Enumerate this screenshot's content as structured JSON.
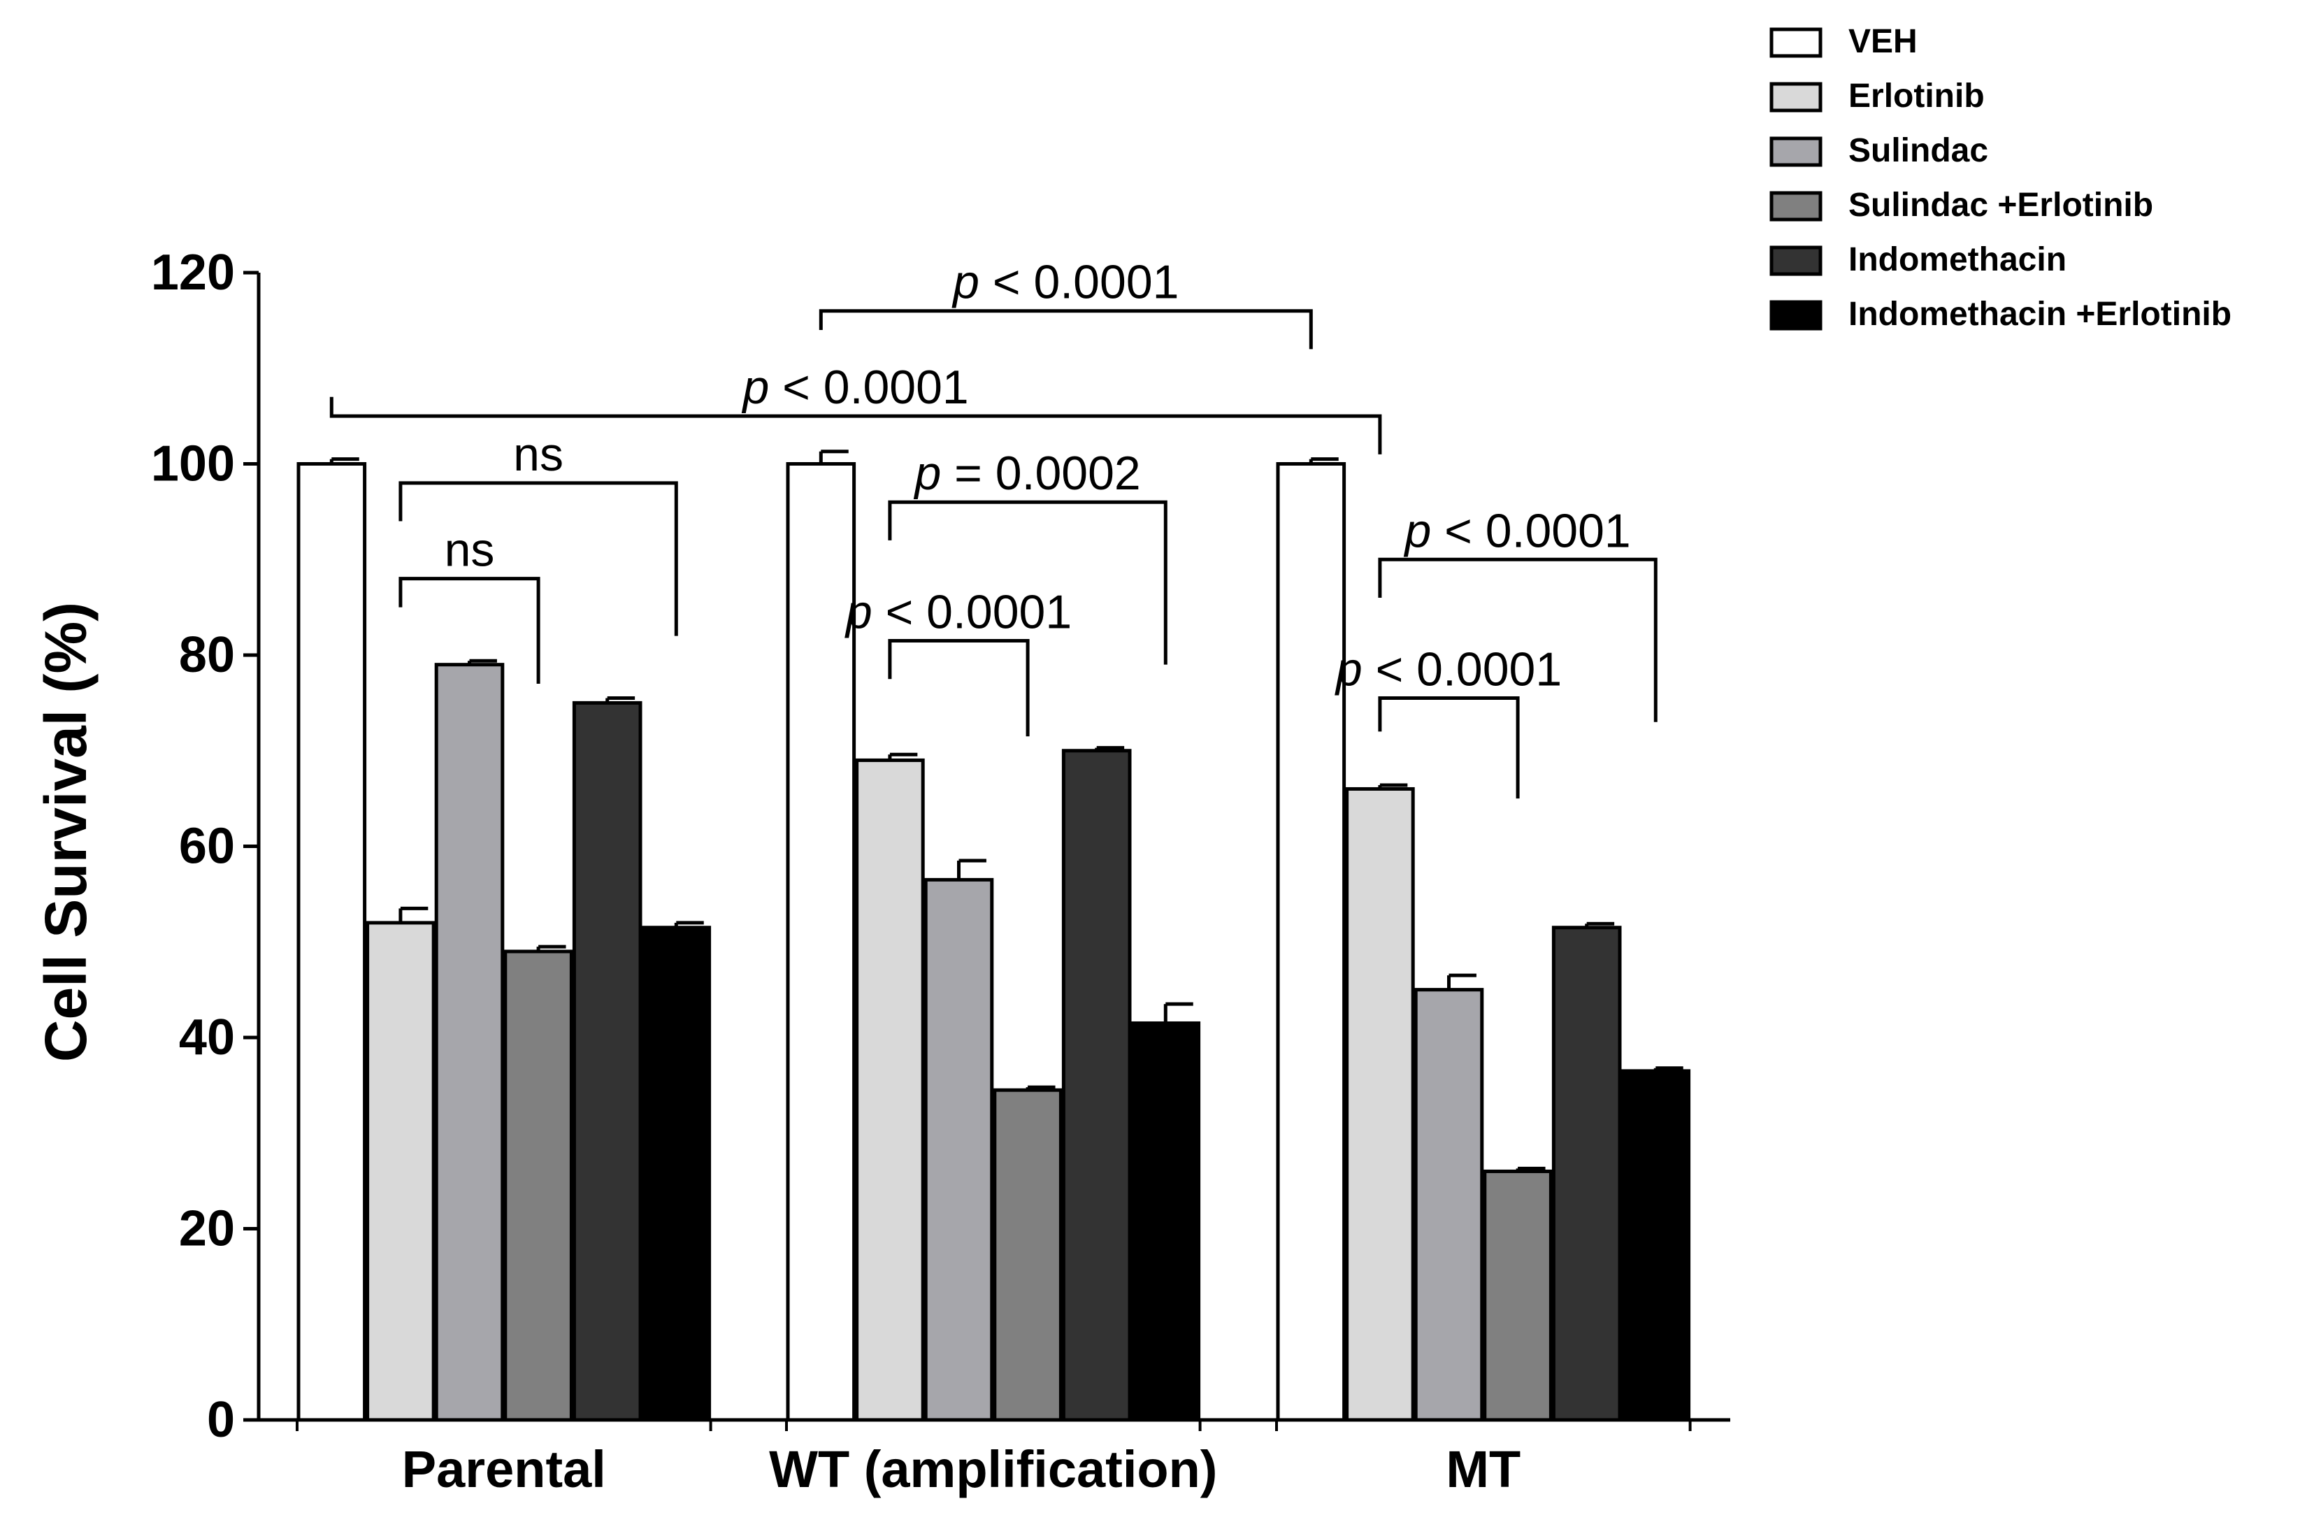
{
  "chart_data": {
    "type": "bar",
    "title": "",
    "xlabel": "",
    "ylabel": "Cell Survival (%)",
    "ylim": [
      0,
      120
    ],
    "yticks": [
      0,
      20,
      40,
      60,
      80,
      100,
      120
    ],
    "grid": false,
    "legend_position": "top-right",
    "categories": [
      "Parental",
      "WT (amplification)",
      "MT"
    ],
    "series": [
      {
        "name": "VEH",
        "color": "#ffffff",
        "values": [
          100,
          100,
          100
        ],
        "errors": [
          0.5,
          1.3,
          0.5
        ]
      },
      {
        "name": "Erlotinib",
        "color": "#d9d9d9",
        "values": [
          52,
          69,
          66
        ],
        "errors": [
          1.5,
          0.6,
          0.4
        ]
      },
      {
        "name": "Sulindac",
        "color": "#a6a6ab",
        "values": [
          79,
          56.5,
          45
        ],
        "errors": [
          0.4,
          2.0,
          1.5
        ]
      },
      {
        "name": "Sulindac +Erlotinib",
        "color": "#808080",
        "values": [
          49,
          34.5,
          26
        ],
        "errors": [
          0.5,
          0.3,
          0.3
        ]
      },
      {
        "name": "Indomethacin",
        "color": "#333333",
        "values": [
          75,
          70,
          51.5
        ],
        "errors": [
          0.5,
          0.3,
          0.4
        ]
      },
      {
        "name": "Indomethacin +Erlotinib",
        "color": "#000000",
        "values": [
          51.5,
          41.5,
          36.5
        ],
        "errors": [
          0.5,
          2.0,
          0.3
        ]
      }
    ],
    "annotations": [
      {
        "label": "p < 0.0001",
        "p_prefix": "p",
        "p_rest": " < 0.0001",
        "from": [
          1,
          0
        ],
        "to": [
          2,
          0
        ],
        "bar_level": 116,
        "left_drop": 114,
        "right_drop": 112
      },
      {
        "label": "p < 0.0001",
        "p_prefix": "p",
        "p_rest": " < 0.0001",
        "from": [
          0,
          0
        ],
        "to": [
          2,
          1
        ],
        "bar_level": 105,
        "left_drop": 107,
        "right_drop": 101
      },
      {
        "label": "ns",
        "p_prefix": "",
        "p_rest": "ns",
        "from": [
          0,
          1
        ],
        "to": [
          0,
          5
        ],
        "bar_level": 98,
        "left_drop": 94,
        "right_drop": 82
      },
      {
        "label": "ns",
        "p_prefix": "",
        "p_rest": "ns",
        "from": [
          0,
          1
        ],
        "to": [
          0,
          3
        ],
        "bar_level": 88,
        "left_drop": 85,
        "right_drop": 77
      },
      {
        "label": "p = 0.0002",
        "p_prefix": "p",
        "p_rest": " = 0.0002",
        "from": [
          1,
          1
        ],
        "to": [
          1,
          5
        ],
        "bar_level": 96,
        "left_drop": 92,
        "right_drop": 79
      },
      {
        "label": "p < 0.0001",
        "p_prefix": "p",
        "p_rest": " < 0.0001",
        "from": [
          1,
          1
        ],
        "to": [
          1,
          3
        ],
        "bar_level": 81.5,
        "left_drop": 77.5,
        "right_drop": 71.5
      },
      {
        "label": "p < 0.0001",
        "p_prefix": "p",
        "p_rest": " < 0.0001",
        "from": [
          2,
          1
        ],
        "to": [
          2,
          5
        ],
        "bar_level": 90,
        "left_drop": 86,
        "right_drop": 73
      },
      {
        "label": "p < 0.0001",
        "p_prefix": "p",
        "p_rest": " < 0.0001",
        "from": [
          2,
          1
        ],
        "to": [
          2,
          3
        ],
        "bar_level": 75.5,
        "left_drop": 72,
        "right_drop": 65
      }
    ]
  }
}
